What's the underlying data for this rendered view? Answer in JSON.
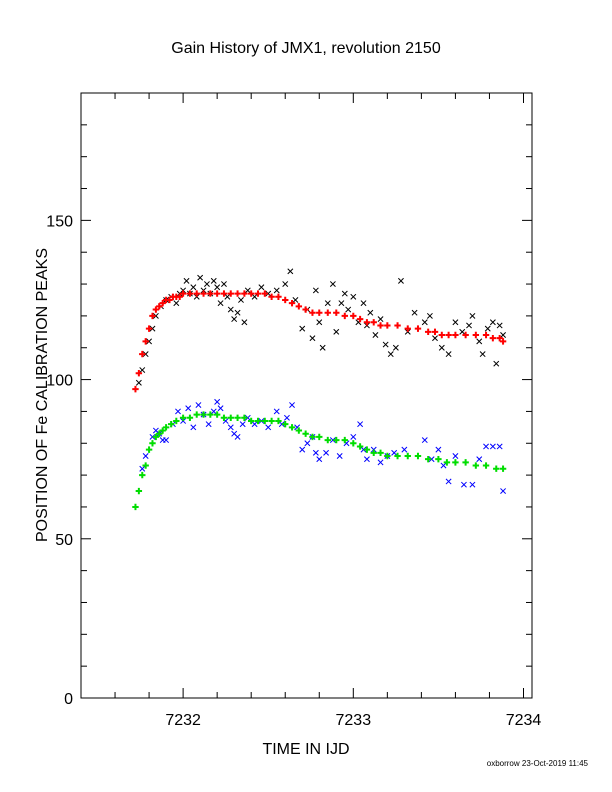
{
  "footer": "oxborrow 23-Oct-2019 11:45",
  "chart_data": {
    "type": "scatter",
    "title": "Gain History of JMX1, revolution 2150",
    "xlabel": "TIME IN IJD",
    "ylabel": "POSITION OF Fe CALIBRATION PEAKS",
    "xlim": [
      7231.4,
      7234.05
    ],
    "ylim": [
      0,
      190
    ],
    "x_ticks": [
      7232,
      7233,
      7234
    ],
    "x_tick_labels": [
      "7232",
      "7233",
      "7234"
    ],
    "y_ticks": [
      0,
      50,
      100,
      150
    ],
    "y_tick_labels": [
      "0",
      "50",
      "100",
      "150"
    ],
    "grid": false,
    "legend": "none",
    "series": [
      {
        "marker": "x",
        "color": "#000000",
        "points": [
          [
            7231.74,
            99
          ],
          [
            7231.76,
            103
          ],
          [
            7231.78,
            108
          ],
          [
            7231.8,
            112
          ],
          [
            7231.82,
            116
          ],
          [
            7231.84,
            120
          ],
          [
            7231.87,
            123
          ],
          [
            7231.9,
            125
          ],
          [
            7231.93,
            126
          ],
          [
            7231.96,
            124
          ],
          [
            7231.98,
            127
          ],
          [
            7232.0,
            128
          ],
          [
            7232.02,
            131
          ],
          [
            7232.04,
            127
          ],
          [
            7232.06,
            129
          ],
          [
            7232.08,
            126
          ],
          [
            7232.1,
            132
          ],
          [
            7232.12,
            128
          ],
          [
            7232.14,
            130
          ],
          [
            7232.16,
            127
          ],
          [
            7232.18,
            131
          ],
          [
            7232.2,
            129
          ],
          [
            7232.22,
            124
          ],
          [
            7232.24,
            130
          ],
          [
            7232.26,
            126
          ],
          [
            7232.28,
            122
          ],
          [
            7232.3,
            119
          ],
          [
            7232.32,
            121
          ],
          [
            7232.34,
            125
          ],
          [
            7232.36,
            118
          ],
          [
            7232.38,
            128
          ],
          [
            7232.42,
            126
          ],
          [
            7232.46,
            129
          ],
          [
            7232.5,
            127
          ],
          [
            7232.55,
            128
          ],
          [
            7232.6,
            130
          ],
          [
            7232.63,
            134
          ],
          [
            7232.66,
            125
          ],
          [
            7232.7,
            116
          ],
          [
            7232.73,
            122
          ],
          [
            7232.76,
            113
          ],
          [
            7232.78,
            128
          ],
          [
            7232.8,
            118
          ],
          [
            7232.82,
            110
          ],
          [
            7232.85,
            124
          ],
          [
            7232.88,
            130
          ],
          [
            7232.9,
            115
          ],
          [
            7232.93,
            124
          ],
          [
            7232.95,
            127
          ],
          [
            7232.97,
            122
          ],
          [
            7233.0,
            126
          ],
          [
            7233.03,
            118
          ],
          [
            7233.06,
            124
          ],
          [
            7233.08,
            117
          ],
          [
            7233.1,
            121
          ],
          [
            7233.13,
            114
          ],
          [
            7233.16,
            119
          ],
          [
            7233.19,
            111
          ],
          [
            7233.22,
            108
          ],
          [
            7233.25,
            110
          ],
          [
            7233.28,
            131
          ],
          [
            7233.32,
            115
          ],
          [
            7233.36,
            121
          ],
          [
            7233.42,
            118
          ],
          [
            7233.45,
            120
          ],
          [
            7233.48,
            113
          ],
          [
            7233.52,
            110
          ],
          [
            7233.56,
            108
          ],
          [
            7233.6,
            118
          ],
          [
            7233.64,
            115
          ],
          [
            7233.68,
            117
          ],
          [
            7233.7,
            120
          ],
          [
            7233.74,
            112
          ],
          [
            7233.76,
            108
          ],
          [
            7233.79,
            116
          ],
          [
            7233.82,
            118
          ],
          [
            7233.84,
            105
          ],
          [
            7233.86,
            117
          ],
          [
            7233.88,
            114
          ]
        ]
      },
      {
        "marker": "+",
        "color": "#ff0000",
        "points": [
          [
            7231.72,
            97
          ],
          [
            7231.74,
            102
          ],
          [
            7231.76,
            108
          ],
          [
            7231.78,
            112
          ],
          [
            7231.8,
            116
          ],
          [
            7231.82,
            120
          ],
          [
            7231.84,
            122
          ],
          [
            7231.86,
            123
          ],
          [
            7231.88,
            124
          ],
          [
            7231.9,
            125
          ],
          [
            7231.92,
            125
          ],
          [
            7231.94,
            126
          ],
          [
            7231.96,
            126
          ],
          [
            7231.98,
            126
          ],
          [
            7232.0,
            127
          ],
          [
            7232.04,
            127
          ],
          [
            7232.08,
            127
          ],
          [
            7232.12,
            127
          ],
          [
            7232.16,
            127
          ],
          [
            7232.2,
            127
          ],
          [
            7232.24,
            127
          ],
          [
            7232.28,
            127
          ],
          [
            7232.32,
            127
          ],
          [
            7232.36,
            127
          ],
          [
            7232.4,
            127
          ],
          [
            7232.44,
            127
          ],
          [
            7232.48,
            127
          ],
          [
            7232.52,
            126
          ],
          [
            7232.56,
            126
          ],
          [
            7232.6,
            125
          ],
          [
            7232.64,
            124
          ],
          [
            7232.68,
            123
          ],
          [
            7232.72,
            122
          ],
          [
            7232.76,
            121
          ],
          [
            7232.8,
            121
          ],
          [
            7232.85,
            121
          ],
          [
            7232.9,
            121
          ],
          [
            7232.95,
            120
          ],
          [
            7233.0,
            120
          ],
          [
            7233.04,
            119
          ],
          [
            7233.08,
            118
          ],
          [
            7233.12,
            118
          ],
          [
            7233.16,
            117
          ],
          [
            7233.2,
            117
          ],
          [
            7233.26,
            117
          ],
          [
            7233.32,
            116
          ],
          [
            7233.38,
            116
          ],
          [
            7233.44,
            115
          ],
          [
            7233.48,
            115
          ],
          [
            7233.52,
            114
          ],
          [
            7233.56,
            114
          ],
          [
            7233.6,
            114
          ],
          [
            7233.66,
            114
          ],
          [
            7233.72,
            114
          ],
          [
            7233.78,
            114
          ],
          [
            7233.82,
            113
          ],
          [
            7233.86,
            113
          ],
          [
            7233.88,
            112
          ]
        ]
      },
      {
        "marker": "x",
        "color": "#0000ff",
        "points": [
          [
            7231.76,
            72
          ],
          [
            7231.78,
            76
          ],
          [
            7231.82,
            82
          ],
          [
            7231.84,
            84
          ],
          [
            7231.86,
            83
          ],
          [
            7231.88,
            81
          ],
          [
            7231.9,
            81
          ],
          [
            7231.94,
            86
          ],
          [
            7231.97,
            90
          ],
          [
            7232.0,
            87
          ],
          [
            7232.03,
            91
          ],
          [
            7232.06,
            85
          ],
          [
            7232.09,
            92
          ],
          [
            7232.12,
            89
          ],
          [
            7232.15,
            86
          ],
          [
            7232.18,
            90
          ],
          [
            7232.2,
            93
          ],
          [
            7232.22,
            91
          ],
          [
            7232.25,
            87
          ],
          [
            7232.28,
            85
          ],
          [
            7232.3,
            83
          ],
          [
            7232.32,
            82
          ],
          [
            7232.35,
            86
          ],
          [
            7232.38,
            88
          ],
          [
            7232.42,
            86
          ],
          [
            7232.46,
            87
          ],
          [
            7232.5,
            85
          ],
          [
            7232.55,
            90
          ],
          [
            7232.58,
            86
          ],
          [
            7232.61,
            88
          ],
          [
            7232.64,
            92
          ],
          [
            7232.67,
            85
          ],
          [
            7232.7,
            78
          ],
          [
            7232.73,
            80
          ],
          [
            7232.76,
            82
          ],
          [
            7232.78,
            77
          ],
          [
            7232.8,
            75
          ],
          [
            7232.84,
            77
          ],
          [
            7232.88,
            81
          ],
          [
            7232.92,
            76
          ],
          [
            7232.96,
            80
          ],
          [
            7233.0,
            82
          ],
          [
            7233.04,
            86
          ],
          [
            7233.06,
            78
          ],
          [
            7233.08,
            75
          ],
          [
            7233.12,
            78
          ],
          [
            7233.16,
            74
          ],
          [
            7233.2,
            76
          ],
          [
            7233.24,
            77
          ],
          [
            7233.3,
            78
          ],
          [
            7233.42,
            81
          ],
          [
            7233.46,
            75
          ],
          [
            7233.5,
            78
          ],
          [
            7233.53,
            73
          ],
          [
            7233.56,
            68
          ],
          [
            7233.6,
            76
          ],
          [
            7233.65,
            67
          ],
          [
            7233.7,
            67
          ],
          [
            7233.74,
            75
          ],
          [
            7233.78,
            79
          ],
          [
            7233.82,
            79
          ],
          [
            7233.86,
            79
          ],
          [
            7233.88,
            65
          ]
        ]
      },
      {
        "marker": "+",
        "color": "#00dd00",
        "points": [
          [
            7231.72,
            60
          ],
          [
            7231.74,
            65
          ],
          [
            7231.76,
            70
          ],
          [
            7231.78,
            73
          ],
          [
            7231.8,
            78
          ],
          [
            7231.82,
            80
          ],
          [
            7231.84,
            82
          ],
          [
            7231.86,
            83
          ],
          [
            7231.88,
            84
          ],
          [
            7231.9,
            85
          ],
          [
            7231.93,
            86
          ],
          [
            7231.96,
            87
          ],
          [
            7232.0,
            88
          ],
          [
            7232.04,
            88
          ],
          [
            7232.08,
            89
          ],
          [
            7232.12,
            89
          ],
          [
            7232.16,
            89
          ],
          [
            7232.2,
            89
          ],
          [
            7232.24,
            88
          ],
          [
            7232.28,
            88
          ],
          [
            7232.32,
            88
          ],
          [
            7232.36,
            88
          ],
          [
            7232.4,
            87
          ],
          [
            7232.44,
            87
          ],
          [
            7232.48,
            87
          ],
          [
            7232.52,
            87
          ],
          [
            7232.56,
            87
          ],
          [
            7232.6,
            86
          ],
          [
            7232.64,
            85
          ],
          [
            7232.68,
            84
          ],
          [
            7232.72,
            83
          ],
          [
            7232.76,
            82
          ],
          [
            7232.8,
            82
          ],
          [
            7232.85,
            81
          ],
          [
            7232.9,
            81
          ],
          [
            7232.95,
            81
          ],
          [
            7233.0,
            80
          ],
          [
            7233.04,
            79
          ],
          [
            7233.08,
            78
          ],
          [
            7233.12,
            77
          ],
          [
            7233.16,
            77
          ],
          [
            7233.2,
            76
          ],
          [
            7233.26,
            76
          ],
          [
            7233.32,
            76
          ],
          [
            7233.38,
            76
          ],
          [
            7233.44,
            75
          ],
          [
            7233.5,
            75
          ],
          [
            7233.55,
            74
          ],
          [
            7233.6,
            74
          ],
          [
            7233.66,
            74
          ],
          [
            7233.72,
            73
          ],
          [
            7233.78,
            73
          ],
          [
            7233.84,
            72
          ],
          [
            7233.88,
            72
          ]
        ]
      }
    ]
  }
}
